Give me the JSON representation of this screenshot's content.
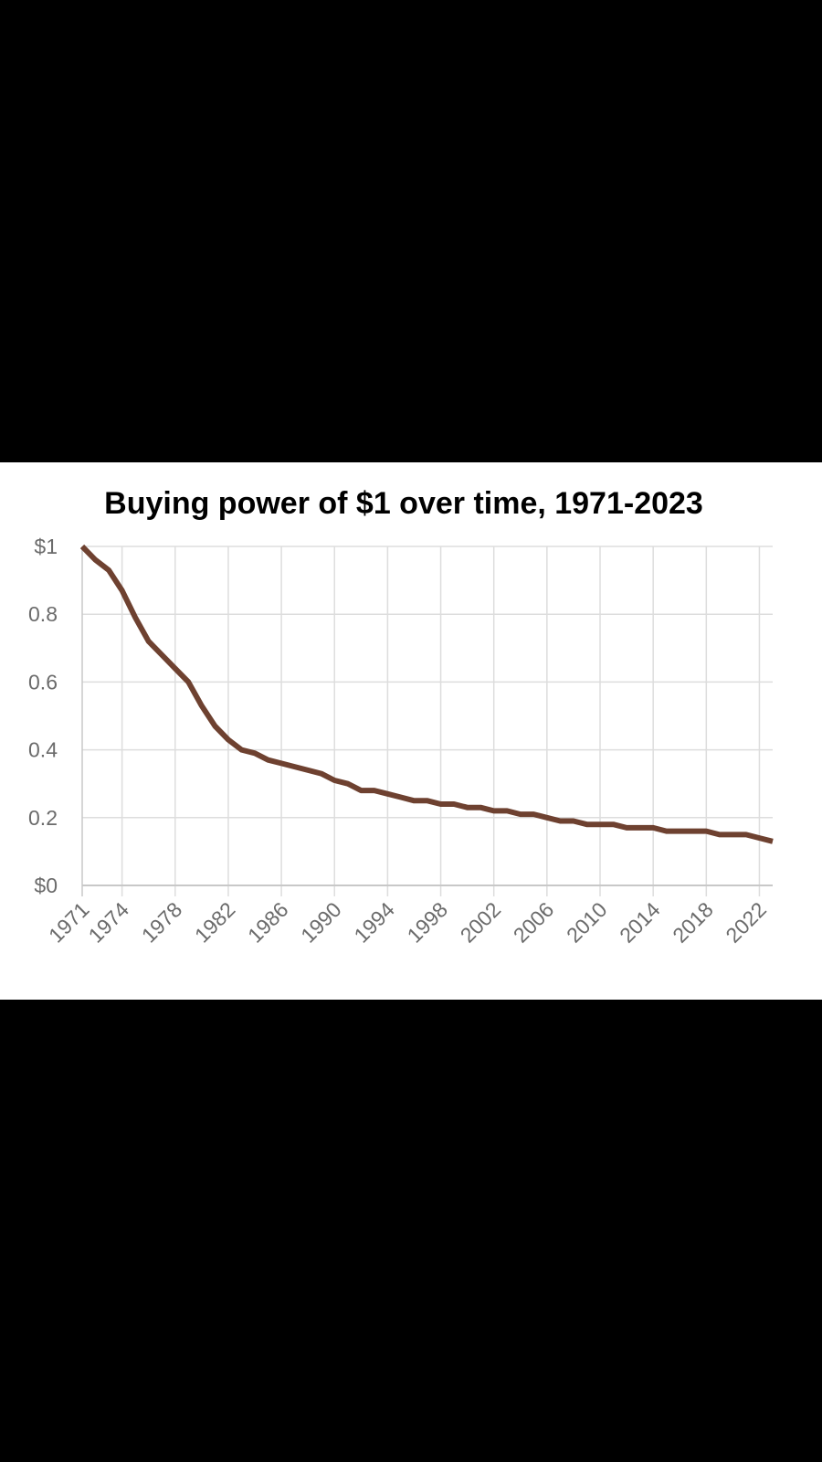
{
  "chart_data": {
    "type": "line",
    "title": "Buying power of $1 over time, 1971-2023",
    "xlabel": "",
    "ylabel": "",
    "xlim": [
      1971,
      2023
    ],
    "ylim": [
      0,
      1
    ],
    "grid": true,
    "line_color": "#6e4130",
    "grid_color": "#dddddd",
    "axis_color": "#c8c8c8",
    "x_ticks": [
      1971,
      1974,
      1978,
      1982,
      1986,
      1990,
      1994,
      1998,
      2002,
      2006,
      2010,
      2014,
      2018,
      2022
    ],
    "y_ticks": [
      {
        "value": 0,
        "label": "$0"
      },
      {
        "value": 0.2,
        "label": "0.2"
      },
      {
        "value": 0.4,
        "label": "0.4"
      },
      {
        "value": 0.6,
        "label": "0.6"
      },
      {
        "value": 0.8,
        "label": "0.8"
      },
      {
        "value": 1,
        "label": "$1"
      }
    ],
    "x": [
      1971,
      1972,
      1973,
      1974,
      1975,
      1976,
      1977,
      1978,
      1979,
      1980,
      1981,
      1982,
      1983,
      1984,
      1985,
      1986,
      1987,
      1988,
      1989,
      1990,
      1991,
      1992,
      1993,
      1994,
      1995,
      1996,
      1997,
      1998,
      1999,
      2000,
      2001,
      2002,
      2003,
      2004,
      2005,
      2006,
      2007,
      2008,
      2009,
      2010,
      2011,
      2012,
      2013,
      2014,
      2015,
      2016,
      2017,
      2018,
      2019,
      2020,
      2021,
      2022,
      2023
    ],
    "series": [
      {
        "values": [
          1.0,
          0.96,
          0.93,
          0.87,
          0.79,
          0.72,
          0.68,
          0.64,
          0.6,
          0.53,
          0.47,
          0.43,
          0.4,
          0.39,
          0.37,
          0.36,
          0.35,
          0.34,
          0.33,
          0.31,
          0.3,
          0.28,
          0.28,
          0.27,
          0.26,
          0.25,
          0.25,
          0.24,
          0.24,
          0.23,
          0.23,
          0.22,
          0.22,
          0.21,
          0.21,
          0.2,
          0.19,
          0.19,
          0.18,
          0.18,
          0.18,
          0.17,
          0.17,
          0.17,
          0.16,
          0.16,
          0.16,
          0.16,
          0.15,
          0.15,
          0.15,
          0.14,
          0.13
        ]
      }
    ]
  }
}
